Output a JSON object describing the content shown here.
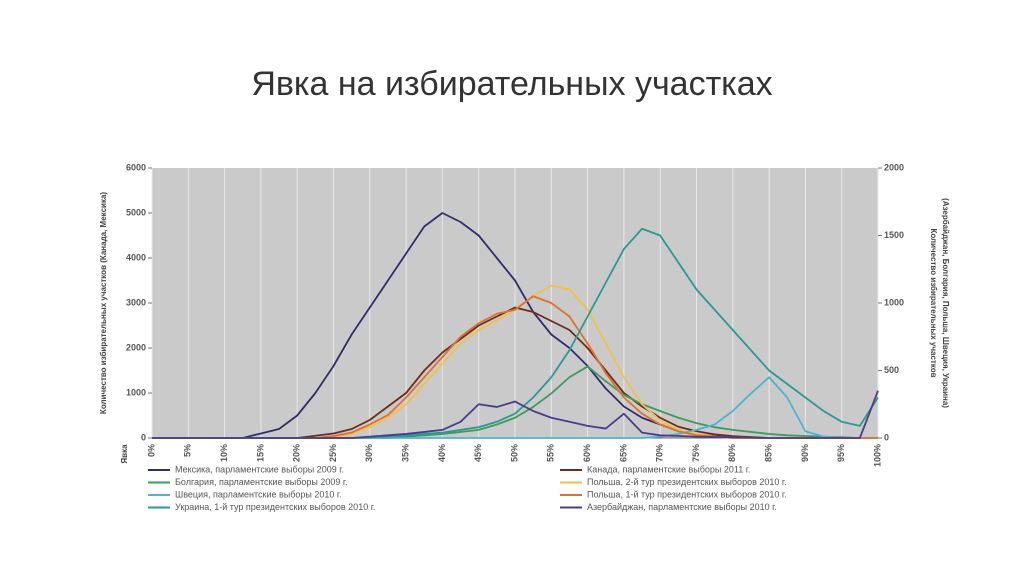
{
  "chart_data": {
    "type": "line",
    "title": "Явка на избирательных участках",
    "xlabel": "Явка",
    "ylabel": "Количество избирательных участков (Канада, Мексика)",
    "y2label": [
      "Количество избирательных участков",
      "(Азербайджан, Болгария, Польша, Швеция, Украина)"
    ],
    "x": [
      0,
      2.5,
      5,
      7.5,
      10,
      12.5,
      15,
      17.5,
      20,
      22.5,
      25,
      27.5,
      30,
      32.5,
      35,
      37.5,
      40,
      42.5,
      45,
      47.5,
      50,
      52.5,
      55,
      57.5,
      60,
      62.5,
      65,
      67.5,
      70,
      72.5,
      75,
      77.5,
      80,
      82.5,
      85,
      87.5,
      90,
      92.5,
      95,
      97.5,
      100
    ],
    "xlim": [
      0,
      100
    ],
    "xticks": [
      {
        "value": 0,
        "label": "0%"
      },
      {
        "value": 5,
        "label": "5%"
      },
      {
        "value": 10,
        "label": "10%"
      },
      {
        "value": 15,
        "label": "15%"
      },
      {
        "value": 20,
        "label": "20%"
      },
      {
        "value": 25,
        "label": "25%"
      },
      {
        "value": 30,
        "label": "30%"
      },
      {
        "value": 35,
        "label": "35%"
      },
      {
        "value": 40,
        "label": "40%"
      },
      {
        "value": 45,
        "label": "45%"
      },
      {
        "value": 50,
        "label": "50%"
      },
      {
        "value": 55,
        "label": "55%"
      },
      {
        "value": 60,
        "label": "60%"
      },
      {
        "value": 65,
        "label": "65%"
      },
      {
        "value": 70,
        "label": "70%"
      },
      {
        "value": 75,
        "label": "75%"
      },
      {
        "value": 80,
        "label": "80%"
      },
      {
        "value": 85,
        "label": "85%"
      },
      {
        "value": 90,
        "label": "90%"
      },
      {
        "value": 95,
        "label": "95%"
      },
      {
        "value": 100,
        "label": "100%"
      }
    ],
    "ylim": [
      0,
      6000
    ],
    "yticks": [
      0,
      1000,
      2000,
      3000,
      4000,
      5000,
      6000
    ],
    "y2lim": [
      0,
      2000
    ],
    "y2ticks": [
      0,
      500,
      1000,
      1500,
      2000
    ],
    "grid": "x",
    "series": [
      {
        "name": "Мексика, парламентские выборы 2009 г.",
        "color": "#2f2f6b",
        "values": [
          0,
          0,
          0,
          0,
          0,
          0,
          100,
          200,
          500,
          1000,
          1600,
          2300,
          2900,
          3500,
          4100,
          4700,
          5000,
          4800,
          4500,
          4000,
          3500,
          2800,
          2300,
          2000,
          1600,
          1100,
          700,
          450,
          300,
          150,
          80,
          40,
          20,
          0,
          0,
          0,
          0,
          0,
          0,
          0,
          0
        ]
      },
      {
        "name": "Канада, парламентские выборы 2011 г.",
        "color": "#6b2d1c",
        "values": [
          0,
          0,
          0,
          0,
          0,
          0,
          0,
          0,
          0,
          50,
          100,
          200,
          400,
          700,
          1000,
          1500,
          1900,
          2200,
          2500,
          2700,
          2900,
          2800,
          2600,
          2400,
          2000,
          1500,
          1000,
          700,
          450,
          250,
          150,
          80,
          40,
          20,
          0,
          0,
          0,
          0,
          0,
          0,
          0
        ]
      },
      {
        "name": "Болгария, парламентские выборы 2009 г.",
        "color": "#3f9a5e",
        "axis": "y2",
        "values": [
          0,
          0,
          0,
          0,
          0,
          0,
          0,
          0,
          0,
          0,
          0,
          0,
          0,
          0,
          10,
          20,
          30,
          45,
          60,
          100,
          150,
          230,
          330,
          450,
          530,
          420,
          320,
          250,
          200,
          150,
          110,
          80,
          60,
          45,
          30,
          20,
          15,
          10,
          5,
          0,
          0
        ]
      },
      {
        "name": "Польша, 2-й тур президентских выборов 2010 г.",
        "color": "#f2c14a",
        "axis": "y2",
        "values": [
          0,
          0,
          0,
          0,
          0,
          0,
          0,
          0,
          0,
          0,
          10,
          30,
          80,
          150,
          250,
          400,
          550,
          700,
          800,
          870,
          950,
          1050,
          1130,
          1100,
          950,
          700,
          450,
          250,
          130,
          60,
          30,
          10,
          0,
          0,
          0,
          0,
          0,
          0,
          0,
          0,
          0
        ]
      },
      {
        "name": "Швеция, парламентские выборы 2010 г.",
        "color": "#4db3d3",
        "axis": "y2",
        "values": [
          0,
          0,
          0,
          0,
          0,
          0,
          0,
          0,
          0,
          0,
          0,
          0,
          0,
          0,
          0,
          0,
          0,
          0,
          0,
          0,
          0,
          0,
          0,
          0,
          0,
          0,
          0,
          0,
          10,
          30,
          60,
          100,
          200,
          330,
          450,
          300,
          50,
          10,
          0,
          0,
          0
        ]
      },
      {
        "name": "Польша, 1-й тур президентских выборов 2010 г.",
        "color": "#e0712e",
        "axis": "y2",
        "values": [
          0,
          0,
          0,
          0,
          0,
          0,
          0,
          0,
          0,
          0,
          15,
          40,
          100,
          170,
          300,
          450,
          600,
          750,
          850,
          920,
          950,
          1050,
          1000,
          900,
          700,
          480,
          300,
          180,
          100,
          50,
          20,
          10,
          0,
          0,
          0,
          0,
          0,
          0,
          0,
          0,
          0
        ]
      },
      {
        "name": "Украина, 1-й тур президентских выборов 2010 г.",
        "color": "#2a9a92",
        "axis": "y2",
        "values": [
          0,
          0,
          0,
          0,
          0,
          0,
          0,
          0,
          0,
          0,
          0,
          0,
          5,
          10,
          20,
          30,
          40,
          60,
          80,
          120,
          180,
          300,
          450,
          650,
          900,
          1150,
          1400,
          1550,
          1500,
          1300,
          1100,
          950,
          800,
          650,
          500,
          400,
          300,
          200,
          120,
          90,
          300
        ]
      },
      {
        "name": "Азербайджан, парламентские выборы 2010 г.",
        "color": "#4b3c8c",
        "axis": "y2",
        "values": [
          0,
          0,
          0,
          0,
          0,
          0,
          0,
          0,
          0,
          0,
          0,
          0,
          10,
          20,
          30,
          45,
          60,
          120,
          250,
          230,
          270,
          200,
          150,
          120,
          90,
          70,
          180,
          40,
          20,
          15,
          10,
          7,
          5,
          3,
          0,
          0,
          0,
          0,
          0,
          0,
          350
        ]
      }
    ]
  }
}
